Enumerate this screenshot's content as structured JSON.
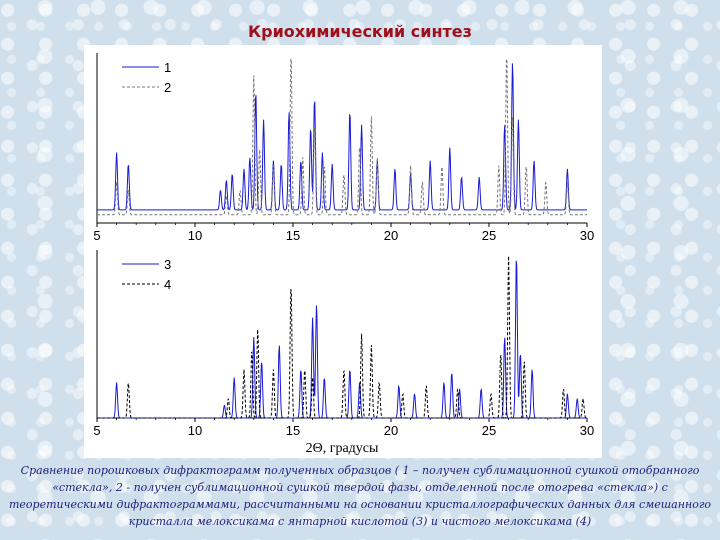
{
  "slide": {
    "title": "Криохимический синтез",
    "caption": "Сравнение порошковых дифрактограмм полученных образцов ( 1 – получен сублимационной сушкой отобранного «стекла», 2 - получен сублимационной сушкой твердой фазы, отделенной после отогрева «стекла») с теоретическими дифрактограммами, рассчитанными на основании кристаллографических данных для смешанного кристалла мелоксикама с янтарной кислотой (3) и чистого мелоксикама (4)"
  },
  "chart_data": [
    {
      "type": "line",
      "title": "",
      "xlabel": "",
      "ylabel": "",
      "xlim": [
        5,
        30
      ],
      "xticks": [
        5,
        10,
        15,
        20,
        25,
        30
      ],
      "grid": false,
      "legend_position": "top-left",
      "series": [
        {
          "name": "1",
          "color": "#1a1ad6",
          "dash": "solid",
          "baseline": 0.08,
          "peaks": [
            [
              6.0,
              0.35
            ],
            [
              6.6,
              0.28
            ],
            [
              11.3,
              0.12
            ],
            [
              11.6,
              0.18
            ],
            [
              11.9,
              0.22
            ],
            [
              12.5,
              0.25
            ],
            [
              12.8,
              0.32
            ],
            [
              13.1,
              0.72
            ],
            [
              13.5,
              0.55
            ],
            [
              14.0,
              0.3
            ],
            [
              14.4,
              0.28
            ],
            [
              14.8,
              0.6
            ],
            [
              15.4,
              0.3
            ],
            [
              15.9,
              0.5
            ],
            [
              16.1,
              0.68
            ],
            [
              16.5,
              0.35
            ],
            [
              17.0,
              0.28
            ],
            [
              17.9,
              0.6
            ],
            [
              18.5,
              0.52
            ],
            [
              19.3,
              0.3
            ],
            [
              20.2,
              0.25
            ],
            [
              21.0,
              0.22
            ],
            [
              22.0,
              0.3
            ],
            [
              23.0,
              0.38
            ],
            [
              23.6,
              0.2
            ],
            [
              24.5,
              0.2
            ],
            [
              25.8,
              0.52
            ],
            [
              26.2,
              0.9
            ],
            [
              26.5,
              0.55
            ],
            [
              27.3,
              0.3
            ],
            [
              29.0,
              0.25
            ]
          ]
        },
        {
          "name": "2",
          "color": "#777777",
          "dash": "dashed",
          "baseline": 0.05,
          "peaks": [
            [
              6.0,
              0.2
            ],
            [
              6.6,
              0.15
            ],
            [
              11.6,
              0.12
            ],
            [
              12.3,
              0.15
            ],
            [
              13.0,
              0.85
            ],
            [
              13.3,
              0.4
            ],
            [
              14.0,
              0.3
            ],
            [
              14.9,
              1.0
            ],
            [
              15.5,
              0.35
            ],
            [
              16.1,
              0.55
            ],
            [
              16.6,
              0.3
            ],
            [
              17.6,
              0.25
            ],
            [
              18.4,
              0.42
            ],
            [
              19.0,
              0.6
            ],
            [
              19.3,
              0.35
            ],
            [
              21.0,
              0.3
            ],
            [
              21.6,
              0.2
            ],
            [
              22.6,
              0.3
            ],
            [
              25.5,
              0.3
            ],
            [
              25.9,
              1.0
            ],
            [
              26.2,
              0.6
            ],
            [
              26.9,
              0.3
            ],
            [
              27.9,
              0.2
            ],
            [
              29.0,
              0.2
            ]
          ]
        }
      ]
    },
    {
      "type": "line",
      "title": "",
      "xlabel": "2Θ, градусы",
      "ylabel": "",
      "xlim": [
        5,
        30
      ],
      "xticks": [
        5,
        10,
        15,
        20,
        25,
        30
      ],
      "grid": false,
      "legend_position": "top-left",
      "series": [
        {
          "name": "3",
          "color": "#1a1ad6",
          "dash": "solid",
          "baseline": 0.0,
          "peaks": [
            [
              6.0,
              0.22
            ],
            [
              11.5,
              0.08
            ],
            [
              12.0,
              0.25
            ],
            [
              13.0,
              0.5
            ],
            [
              13.4,
              0.35
            ],
            [
              14.3,
              0.45
            ],
            [
              15.4,
              0.3
            ],
            [
              16.0,
              0.62
            ],
            [
              16.2,
              0.7
            ],
            [
              16.6,
              0.25
            ],
            [
              17.9,
              0.3
            ],
            [
              18.4,
              0.22
            ],
            [
              20.4,
              0.2
            ],
            [
              21.2,
              0.15
            ],
            [
              22.7,
              0.22
            ],
            [
              23.1,
              0.28
            ],
            [
              23.5,
              0.18
            ],
            [
              24.6,
              0.18
            ],
            [
              25.8,
              0.5
            ],
            [
              26.4,
              1.0
            ],
            [
              26.6,
              0.4
            ],
            [
              27.2,
              0.3
            ],
            [
              29.0,
              0.15
            ],
            [
              29.5,
              0.12
            ]
          ]
        },
        {
          "name": "4",
          "color": "#000000",
          "dash": "dashed",
          "baseline": 0.0,
          "peaks": [
            [
              6.6,
              0.22
            ],
            [
              11.7,
              0.12
            ],
            [
              12.5,
              0.3
            ],
            [
              12.9,
              0.42
            ],
            [
              13.2,
              0.55
            ],
            [
              14.0,
              0.3
            ],
            [
              14.9,
              0.82
            ],
            [
              15.6,
              0.3
            ],
            [
              16.0,
              0.25
            ],
            [
              17.6,
              0.3
            ],
            [
              18.5,
              0.52
            ],
            [
              19.0,
              0.45
            ],
            [
              19.4,
              0.22
            ],
            [
              20.6,
              0.15
            ],
            [
              21.8,
              0.2
            ],
            [
              23.4,
              0.18
            ],
            [
              25.1,
              0.15
            ],
            [
              25.6,
              0.4
            ],
            [
              26.0,
              1.0
            ],
            [
              26.8,
              0.35
            ],
            [
              28.8,
              0.18
            ],
            [
              29.8,
              0.12
            ]
          ]
        }
      ]
    }
  ]
}
